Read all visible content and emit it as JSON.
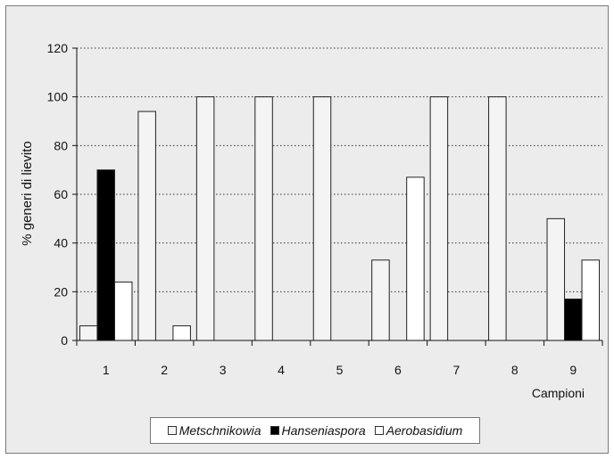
{
  "chart_data": {
    "type": "bar",
    "ylabel": "% generi di lievito",
    "xlabel": "Campioni",
    "ylim": [
      0,
      120
    ],
    "yticks": [
      0,
      20,
      40,
      60,
      80,
      100,
      120
    ],
    "grid": "horizontal dotted",
    "legend_position": "bottom",
    "categories": [
      "1",
      "2",
      "3",
      "4",
      "5",
      "6",
      "7",
      "8",
      "9"
    ],
    "series": [
      {
        "name": "Metschnikowia",
        "color": "#f4f4f4",
        "values": [
          6,
          94,
          100,
          100,
          100,
          33,
          100,
          100,
          50
        ]
      },
      {
        "name": "Hanseniaspora",
        "color": "#000000",
        "values": [
          70,
          0,
          0,
          0,
          0,
          0,
          0,
          0,
          17
        ]
      },
      {
        "name": "Aerobasidium",
        "color": "#ffffff",
        "values": [
          24,
          6,
          0,
          0,
          0,
          67,
          0,
          0,
          33
        ]
      }
    ]
  }
}
